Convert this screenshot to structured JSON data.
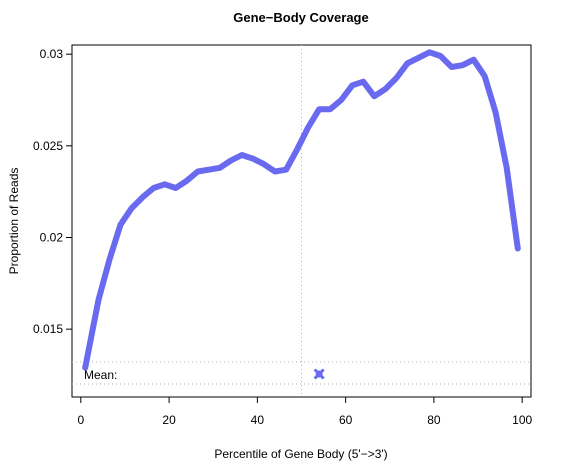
{
  "chart_data": {
    "type": "line",
    "title": "Gene−Body Coverage",
    "xlabel": "Percentile of Gene Body (5'−>3')",
    "ylabel": "Proportion of Reads",
    "xlim": [
      -2,
      102
    ],
    "ylim": [
      0.0113,
      0.0305
    ],
    "x_ticks": [
      0,
      20,
      40,
      60,
      80,
      100
    ],
    "x_tick_labels": [
      "0",
      "20",
      "40",
      "60",
      "80",
      "100"
    ],
    "y_ticks": [
      0.015,
      0.02,
      0.025,
      0.03
    ],
    "y_tick_labels": [
      "0.015",
      "0.02",
      "0.025",
      "0.03"
    ],
    "line_color": "#6a6af0",
    "series": [
      {
        "x": [
          1,
          4,
          6.5,
          9,
          11.5,
          14,
          16.5,
          19,
          21.5,
          24,
          26.5,
          29,
          31.5,
          34,
          36.5,
          39,
          41.5,
          44,
          46.5,
          49,
          51.5,
          54,
          56.5,
          59,
          61.5,
          64,
          66.5,
          69,
          71.5,
          74,
          76.5,
          79,
          81.5,
          84,
          86.5,
          89,
          91.5,
          94,
          96.5,
          99
        ],
        "y": [
          0.0129,
          0.0166,
          0.0188,
          0.0207,
          0.0216,
          0.0222,
          0.0227,
          0.0229,
          0.0227,
          0.0231,
          0.0236,
          0.0237,
          0.0238,
          0.0242,
          0.0245,
          0.0243,
          0.024,
          0.0236,
          0.0237,
          0.0248,
          0.026,
          0.027,
          0.027,
          0.0275,
          0.0283,
          0.0285,
          0.0277,
          0.0281,
          0.0287,
          0.0295,
          0.0298,
          0.0301,
          0.0299,
          0.0293,
          0.0294,
          0.0297,
          0.0288,
          0.0268,
          0.0238,
          0.0194
        ]
      }
    ],
    "vline_x": 50,
    "mean": {
      "label": "Mean:",
      "x": 54,
      "marker_color": "#6a6af0"
    }
  }
}
